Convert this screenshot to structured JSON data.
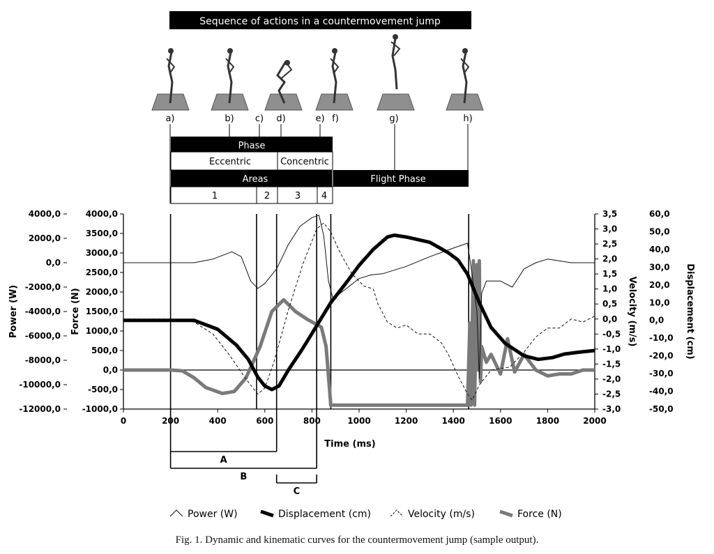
{
  "header": {
    "banner": "Sequence of actions in a countermovement jump",
    "figure_labels": [
      "a)",
      "b)",
      "c)",
      "d)",
      "e)",
      "f)",
      "g)",
      "h)"
    ],
    "phase_title": "Phase",
    "phase_eccentric": "Eccentric",
    "phase_concentric": "Concentric",
    "areas_title": "Areas",
    "flight_phase": "Flight Phase",
    "area_numbers": [
      "1",
      "2",
      "3",
      "4"
    ]
  },
  "chart_data": {
    "type": "line",
    "xlabel": "Time (ms)",
    "xlim": [
      0,
      2000
    ],
    "x_ticks": [
      "0",
      "200",
      "400",
      "600",
      "800",
      "1000",
      "1200",
      "1400",
      "1600",
      "1800",
      "2000"
    ],
    "axes": {
      "power": {
        "label": "Power (W)",
        "ylim": [
          -12000,
          4000
        ],
        "ticks": [
          "4000,0",
          "2000,0",
          "0,0",
          "-2000,0",
          "-4000,0",
          "-6000,0",
          "-8000,0",
          "-10000,0",
          "-12000,0"
        ]
      },
      "force": {
        "label": "Force (N)",
        "ylim": [
          -1000,
          4000
        ],
        "ticks": [
          "4000,0",
          "3500,0",
          "3000,0",
          "2500,0",
          "2000,0",
          "1500,0",
          "1000,0",
          "500,0",
          "0,0",
          "-500,0",
          "-1000,0"
        ]
      },
      "velocity": {
        "label": "Velocity (m/s)",
        "ylim": [
          -3.0,
          3.5
        ],
        "ticks": [
          "3,5",
          "3,0",
          "2,5",
          "2,0",
          "1,5",
          "1,0",
          "0,5",
          "0,0",
          "-0,5",
          "-1,0",
          "-1,5",
          "-2,0",
          "-2,5",
          "-3,0"
        ]
      },
      "displacement": {
        "label": "Displacement (cm)",
        "ylim": [
          -50,
          60
        ],
        "ticks": [
          "60,0",
          "50,0",
          "40,0",
          "30,0",
          "20,0",
          "10,0",
          "0,0",
          "-10,0",
          "-20,0",
          "-30,0",
          "-40,0",
          "-50,0"
        ]
      }
    },
    "series": [
      {
        "name": "Power (W)",
        "axis": "power",
        "points": [
          [
            0,
            0
          ],
          [
            300,
            0
          ],
          [
            380,
            300
          ],
          [
            460,
            900
          ],
          [
            500,
            500
          ],
          [
            540,
            -1500
          ],
          [
            570,
            -2100
          ],
          [
            600,
            -1700
          ],
          [
            650,
            -500
          ],
          [
            700,
            1500
          ],
          [
            750,
            3000
          ],
          [
            800,
            3700
          ],
          [
            830,
            3900
          ],
          [
            850,
            2200
          ],
          [
            870,
            -1500
          ],
          [
            890,
            -3000
          ],
          [
            920,
            -2500
          ],
          [
            1000,
            -1300
          ],
          [
            1050,
            -1000
          ],
          [
            1100,
            -900
          ],
          [
            1200,
            -300
          ],
          [
            1300,
            500
          ],
          [
            1400,
            1200
          ],
          [
            1460,
            1600
          ],
          [
            1480,
            -1000
          ],
          [
            1500,
            -4000
          ],
          [
            1510,
            -9500
          ],
          [
            1520,
            -2500
          ],
          [
            1540,
            -1500
          ],
          [
            1560,
            -1500
          ],
          [
            1600,
            -1500
          ],
          [
            1650,
            -2000
          ],
          [
            1700,
            -500
          ],
          [
            1750,
            0
          ],
          [
            1800,
            300
          ],
          [
            1900,
            0
          ],
          [
            2000,
            0
          ]
        ]
      },
      {
        "name": "Displacement (cm)",
        "axis": "displacement",
        "points": [
          [
            0,
            0
          ],
          [
            300,
            0
          ],
          [
            400,
            -5
          ],
          [
            480,
            -14
          ],
          [
            530,
            -22
          ],
          [
            570,
            -32
          ],
          [
            600,
            -37
          ],
          [
            630,
            -39
          ],
          [
            660,
            -37
          ],
          [
            700,
            -28
          ],
          [
            760,
            -16
          ],
          [
            820,
            -3
          ],
          [
            880,
            10
          ],
          [
            950,
            22
          ],
          [
            1000,
            31
          ],
          [
            1060,
            40
          ],
          [
            1120,
            47
          ],
          [
            1150,
            48
          ],
          [
            1200,
            47
          ],
          [
            1300,
            44
          ],
          [
            1380,
            38
          ],
          [
            1420,
            34
          ],
          [
            1460,
            26
          ],
          [
            1510,
            10
          ],
          [
            1560,
            -4
          ],
          [
            1620,
            -13
          ],
          [
            1700,
            -20
          ],
          [
            1760,
            -22
          ],
          [
            1820,
            -21
          ],
          [
            1870,
            -19
          ],
          [
            1930,
            -18
          ],
          [
            2000,
            -17
          ]
        ]
      },
      {
        "name": "Velocity (m/s)",
        "axis": "velocity",
        "points": [
          [
            0,
            0
          ],
          [
            200,
            0
          ],
          [
            300,
            -0.1
          ],
          [
            380,
            -0.5
          ],
          [
            450,
            -1.2
          ],
          [
            520,
            -2.0
          ],
          [
            570,
            -2.5
          ],
          [
            600,
            -2.3
          ],
          [
            640,
            -1.4
          ],
          [
            700,
            0.3
          ],
          [
            760,
            1.8
          ],
          [
            820,
            3.0
          ],
          [
            850,
            3.2
          ],
          [
            880,
            2.9
          ],
          [
            920,
            2.2
          ],
          [
            970,
            1.5
          ],
          [
            1020,
            1.1
          ],
          [
            1060,
            1.0
          ],
          [
            1080,
            0.5
          ],
          [
            1120,
            -0.1
          ],
          [
            1160,
            -0.3
          ],
          [
            1200,
            -0.2
          ],
          [
            1250,
            -0.5
          ],
          [
            1300,
            -0.5
          ],
          [
            1350,
            -0.8
          ],
          [
            1380,
            -1.2
          ],
          [
            1420,
            -1.9
          ],
          [
            1460,
            -2.5
          ],
          [
            1480,
            -2.7
          ],
          [
            1510,
            -2.2
          ],
          [
            1560,
            -1.7
          ],
          [
            1640,
            -1.6
          ],
          [
            1700,
            -1.1
          ],
          [
            1750,
            -0.6
          ],
          [
            1800,
            -0.3
          ],
          [
            1850,
            -0.3
          ],
          [
            1900,
            0.0
          ],
          [
            1950,
            -0.1
          ],
          [
            2000,
            0.1
          ]
        ]
      },
      {
        "name": "Force (N)",
        "axis": "force",
        "points": [
          [
            0,
            0
          ],
          [
            200,
            0
          ],
          [
            250,
            -20
          ],
          [
            300,
            -200
          ],
          [
            350,
            -450
          ],
          [
            420,
            -600
          ],
          [
            470,
            -550
          ],
          [
            520,
            -200
          ],
          [
            580,
            600
          ],
          [
            630,
            1500
          ],
          [
            680,
            1800
          ],
          [
            730,
            1500
          ],
          [
            780,
            1300
          ],
          [
            840,
            1100
          ],
          [
            860,
            600
          ],
          [
            880,
            -900
          ],
          [
            1000,
            -900
          ],
          [
            1200,
            -900
          ],
          [
            1460,
            -900
          ],
          [
            1470,
            1200
          ],
          [
            1475,
            -900
          ],
          [
            1485,
            2800
          ],
          [
            1490,
            -900
          ],
          [
            1500,
            2700
          ],
          [
            1505,
            0
          ],
          [
            1510,
            2800
          ],
          [
            1515,
            -300
          ],
          [
            1520,
            600
          ],
          [
            1540,
            200
          ],
          [
            1560,
            400
          ],
          [
            1600,
            -100
          ],
          [
            1630,
            800
          ],
          [
            1660,
            -50
          ],
          [
            1700,
            400
          ],
          [
            1750,
            0
          ],
          [
            1800,
            -150
          ],
          [
            1850,
            -100
          ],
          [
            1900,
            -100
          ],
          [
            1950,
            0
          ],
          [
            2000,
            0
          ]
        ]
      }
    ],
    "event_times": [
      200,
      565,
      650,
      820,
      880,
      1465
    ],
    "intervals": [
      {
        "label": "A",
        "start": 200,
        "end": 650
      },
      {
        "label": "B",
        "start": 200,
        "end": 820
      },
      {
        "label": "C",
        "start": 650,
        "end": 820
      }
    ],
    "legend": [
      "Power (W)",
      "Displacement (cm)",
      "Velocity (m/s)",
      "Force (N)"
    ]
  },
  "caption": "Fig. 1. Dynamic and kinematic curves for the countermovement jump (sample output)."
}
